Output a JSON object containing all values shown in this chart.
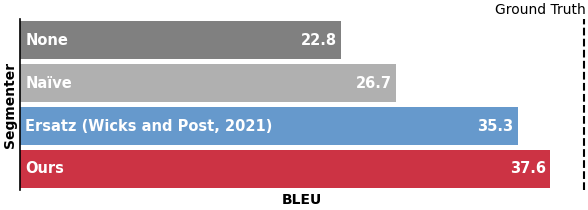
{
  "categories": [
    "None",
    "Naïve",
    "Ersatz (Wicks and Post, 2021)",
    "Ours"
  ],
  "values": [
    22.8,
    26.7,
    35.3,
    37.6
  ],
  "bar_colors": [
    "#808080",
    "#b0b0b0",
    "#6699cc",
    "#cc3344"
  ],
  "value_labels": [
    "22.8",
    "26.7",
    "35.3",
    "37.6"
  ],
  "xlabel": "BLEU",
  "ylabel": "Segmenter",
  "ground_truth_label": "Ground Truth",
  "xlim": [
    0,
    40
  ],
  "bar_height": 0.88,
  "bar_label_fontsize": 10.5,
  "axis_label_fontsize": 10,
  "background_color": "#ffffff"
}
